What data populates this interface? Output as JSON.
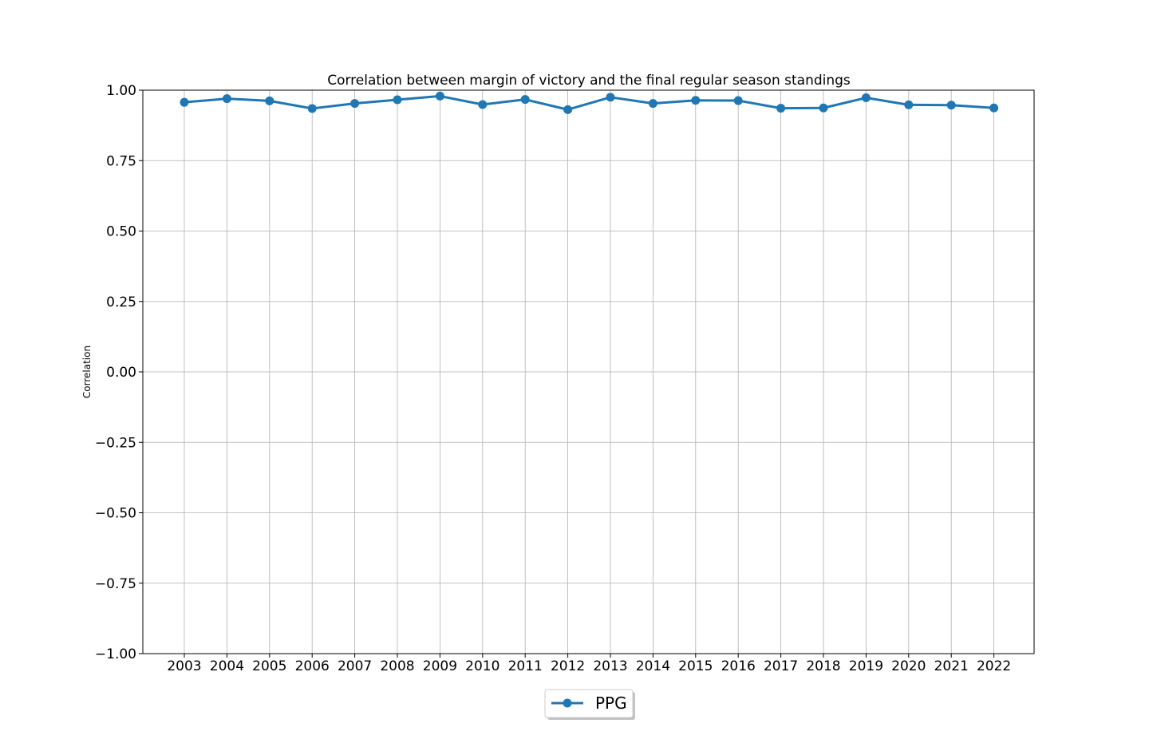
{
  "chart_data": {
    "type": "line",
    "title": "Correlation between margin of victory and the final regular season standings",
    "xlabel": "",
    "ylabel": "Correlation",
    "x": [
      "2003",
      "2004",
      "2005",
      "2006",
      "2007",
      "2008",
      "2009",
      "2010",
      "2011",
      "2012",
      "2013",
      "2014",
      "2015",
      "2016",
      "2017",
      "2018",
      "2019",
      "2020",
      "2021",
      "2022"
    ],
    "series": [
      {
        "name": "PPG",
        "color": "#1f77b4",
        "values": [
          0.957,
          0.97,
          0.962,
          0.935,
          0.953,
          0.966,
          0.979,
          0.949,
          0.967,
          0.931,
          0.975,
          0.953,
          0.964,
          0.963,
          0.936,
          0.937,
          0.973,
          0.948,
          0.947,
          0.937
        ]
      }
    ],
    "ylim": [
      -1.0,
      1.0
    ],
    "yticks": [
      1.0,
      0.75,
      0.5,
      0.25,
      0.0,
      -0.25,
      -0.5,
      -0.75,
      -1.0
    ],
    "ytick_labels": [
      "1.00",
      "0.75",
      "0.50",
      "0.25",
      "0.00",
      "−0.25",
      "−0.50",
      "−0.75",
      "−1.00"
    ],
    "grid": true,
    "legend_position": "bottom-center"
  }
}
